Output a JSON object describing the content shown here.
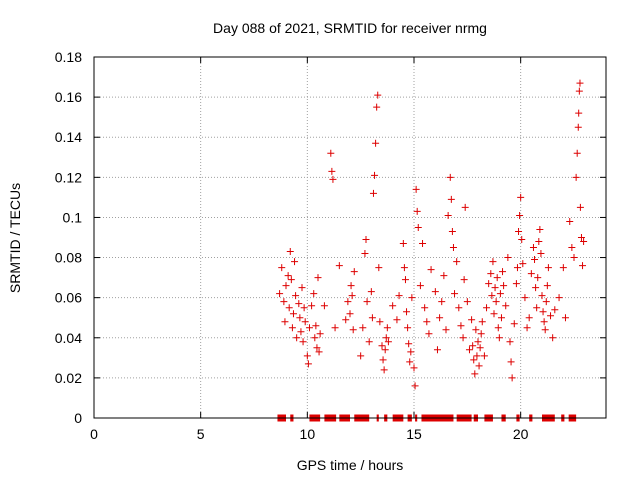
{
  "chart_data": {
    "type": "scatter",
    "title": "Day 088 of 2021, SRMTID for receiver nrmg",
    "xlabel": "GPS time / hours",
    "ylabel": "SRMTID / TECUs",
    "xlim": [
      0,
      24
    ],
    "ylim": [
      0,
      0.18
    ],
    "x_ticks": [
      0,
      5,
      10,
      15,
      20
    ],
    "x_tick_labels": [
      "0",
      "5",
      "10",
      "15",
      "20"
    ],
    "y_ticks": [
      0,
      0.02,
      0.04,
      0.06,
      0.08,
      0.1,
      0.12,
      0.14,
      0.16,
      0.18
    ],
    "y_tick_labels": [
      "0",
      "0.02",
      "0.04",
      "0.06",
      "0.08",
      "0.1",
      "0.12",
      "0.14",
      "0.16",
      "0.18"
    ],
    "grid": true,
    "marker": "+",
    "series": [
      {
        "name": "SRMTID",
        "color": "#dd0000",
        "points": [
          [
            8.7,
            0.062
          ],
          [
            8.8,
            0.075
          ],
          [
            8.9,
            0.058
          ],
          [
            8.95,
            0.048
          ],
          [
            9.0,
            0.066
          ],
          [
            9.1,
            0.071
          ],
          [
            9.15,
            0.055
          ],
          [
            9.2,
            0.083
          ],
          [
            9.25,
            0.069
          ],
          [
            9.3,
            0.045
          ],
          [
            9.35,
            0.052
          ],
          [
            9.4,
            0.078
          ],
          [
            9.45,
            0.061
          ],
          [
            9.5,
            0.04
          ],
          [
            9.6,
            0.057
          ],
          [
            9.65,
            0.05
          ],
          [
            9.7,
            0.043
          ],
          [
            9.75,
            0.065
          ],
          [
            9.8,
            0.038
          ],
          [
            9.85,
            0.055
          ],
          [
            9.9,
            0.048
          ],
          [
            10.0,
            0.031
          ],
          [
            10.05,
            0.027
          ],
          [
            10.1,
            0.045
          ],
          [
            10.2,
            0.056
          ],
          [
            10.3,
            0.062
          ],
          [
            10.35,
            0.04
          ],
          [
            10.4,
            0.046
          ],
          [
            10.45,
            0.035
          ],
          [
            10.5,
            0.07
          ],
          [
            10.55,
            0.033
          ],
          [
            10.6,
            0.042
          ],
          [
            10.8,
            0.056
          ],
          [
            11.1,
            0.132
          ],
          [
            11.15,
            0.123
          ],
          [
            11.2,
            0.119
          ],
          [
            11.3,
            0.045
          ],
          [
            11.5,
            0.076
          ],
          [
            11.8,
            0.049
          ],
          [
            11.9,
            0.058
          ],
          [
            12.0,
            0.052
          ],
          [
            12.05,
            0.066
          ],
          [
            12.1,
            0.061
          ],
          [
            12.15,
            0.044
          ],
          [
            12.2,
            0.073
          ],
          [
            12.5,
            0.031
          ],
          [
            12.6,
            0.045
          ],
          [
            12.7,
            0.082
          ],
          [
            12.75,
            0.089
          ],
          [
            12.8,
            0.058
          ],
          [
            12.9,
            0.038
          ],
          [
            13.0,
            0.063
          ],
          [
            13.05,
            0.05
          ],
          [
            13.1,
            0.112
          ],
          [
            13.15,
            0.121
          ],
          [
            13.2,
            0.137
          ],
          [
            13.25,
            0.155
          ],
          [
            13.3,
            0.161
          ],
          [
            13.35,
            0.075
          ],
          [
            13.4,
            0.048
          ],
          [
            13.5,
            0.036
          ],
          [
            13.55,
            0.029
          ],
          [
            13.6,
            0.024
          ],
          [
            13.65,
            0.034
          ],
          [
            13.7,
            0.04
          ],
          [
            13.75,
            0.045
          ],
          [
            13.8,
            0.038
          ],
          [
            14.0,
            0.056
          ],
          [
            14.2,
            0.049
          ],
          [
            14.3,
            0.061
          ],
          [
            14.5,
            0.087
          ],
          [
            14.55,
            0.075
          ],
          [
            14.6,
            0.069
          ],
          [
            14.65,
            0.053
          ],
          [
            14.7,
            0.045
          ],
          [
            14.75,
            0.037
          ],
          [
            14.8,
            0.028
          ],
          [
            14.85,
            0.033
          ],
          [
            14.9,
            0.06
          ],
          [
            15.0,
            0.025
          ],
          [
            15.05,
            0.016
          ],
          [
            15.1,
            0.114
          ],
          [
            15.15,
            0.103
          ],
          [
            15.2,
            0.095
          ],
          [
            15.3,
            0.066
          ],
          [
            15.4,
            0.087
          ],
          [
            15.5,
            0.055
          ],
          [
            15.6,
            0.048
          ],
          [
            15.7,
            0.042
          ],
          [
            15.8,
            0.074
          ],
          [
            16.0,
            0.063
          ],
          [
            16.1,
            0.034
          ],
          [
            16.2,
            0.05
          ],
          [
            16.3,
            0.058
          ],
          [
            16.4,
            0.071
          ],
          [
            16.5,
            0.044
          ],
          [
            16.6,
            0.101
          ],
          [
            16.7,
            0.12
          ],
          [
            16.75,
            0.109
          ],
          [
            16.8,
            0.093
          ],
          [
            16.85,
            0.085
          ],
          [
            16.9,
            0.062
          ],
          [
            17.0,
            0.078
          ],
          [
            17.1,
            0.055
          ],
          [
            17.2,
            0.046
          ],
          [
            17.3,
            0.04
          ],
          [
            17.35,
            0.069
          ],
          [
            17.4,
            0.105
          ],
          [
            17.5,
            0.058
          ],
          [
            17.6,
            0.034
          ],
          [
            17.7,
            0.049
          ],
          [
            17.75,
            0.036
          ],
          [
            17.8,
            0.029
          ],
          [
            17.85,
            0.022
          ],
          [
            17.9,
            0.044
          ],
          [
            17.95,
            0.031
          ],
          [
            18.0,
            0.038
          ],
          [
            18.05,
            0.026
          ],
          [
            18.1,
            0.035
          ],
          [
            18.15,
            0.042
          ],
          [
            18.2,
            0.048
          ],
          [
            18.3,
            0.031
          ],
          [
            18.4,
            0.055
          ],
          [
            18.5,
            0.067
          ],
          [
            18.6,
            0.072
          ],
          [
            18.65,
            0.061
          ],
          [
            18.7,
            0.078
          ],
          [
            18.75,
            0.052
          ],
          [
            18.8,
            0.065
          ],
          [
            18.85,
            0.058
          ],
          [
            18.9,
            0.07
          ],
          [
            18.95,
            0.045
          ],
          [
            19.0,
            0.04
          ],
          [
            19.05,
            0.062
          ],
          [
            19.1,
            0.05
          ],
          [
            19.15,
            0.073
          ],
          [
            19.2,
            0.066
          ],
          [
            19.3,
            0.056
          ],
          [
            19.4,
            0.08
          ],
          [
            19.5,
            0.038
          ],
          [
            19.55,
            0.028
          ],
          [
            19.6,
            0.02
          ],
          [
            19.7,
            0.047
          ],
          [
            19.8,
            0.067
          ],
          [
            19.85,
            0.075
          ],
          [
            19.9,
            0.093
          ],
          [
            19.95,
            0.101
          ],
          [
            20.0,
            0.11
          ],
          [
            20.05,
            0.089
          ],
          [
            20.1,
            0.077
          ],
          [
            20.2,
            0.06
          ],
          [
            20.3,
            0.045
          ],
          [
            20.4,
            0.05
          ],
          [
            20.5,
            0.072
          ],
          [
            20.6,
            0.085
          ],
          [
            20.65,
            0.079
          ],
          [
            20.7,
            0.065
          ],
          [
            20.75,
            0.055
          ],
          [
            20.8,
            0.07
          ],
          [
            20.85,
            0.088
          ],
          [
            20.9,
            0.094
          ],
          [
            20.95,
            0.082
          ],
          [
            21.0,
            0.061
          ],
          [
            21.05,
            0.053
          ],
          [
            21.1,
            0.048
          ],
          [
            21.15,
            0.044
          ],
          [
            21.2,
            0.058
          ],
          [
            21.25,
            0.066
          ],
          [
            21.3,
            0.075
          ],
          [
            21.4,
            0.051
          ],
          [
            21.5,
            0.04
          ],
          [
            21.6,
            0.054
          ],
          [
            21.8,
            0.06
          ],
          [
            22.0,
            0.075
          ],
          [
            22.1,
            0.05
          ],
          [
            22.3,
            0.098
          ],
          [
            22.4,
            0.085
          ],
          [
            22.5,
            0.08
          ],
          [
            22.6,
            0.12
          ],
          [
            22.65,
            0.132
          ],
          [
            22.7,
            0.145
          ],
          [
            22.72,
            0.152
          ],
          [
            22.75,
            0.163
          ],
          [
            22.78,
            0.167
          ],
          [
            22.8,
            0.105
          ],
          [
            22.85,
            0.09
          ],
          [
            22.9,
            0.076
          ],
          [
            22.95,
            0.088
          ]
        ],
        "zero_segments": [
          [
            8.6,
            9.0
          ],
          [
            9.2,
            9.35
          ],
          [
            10.1,
            10.6
          ],
          [
            10.8,
            11.35
          ],
          [
            11.5,
            12.0
          ],
          [
            12.2,
            12.9
          ],
          [
            13.25,
            13.35
          ],
          [
            13.6,
            13.75
          ],
          [
            14.0,
            14.5
          ],
          [
            14.7,
            14.9
          ],
          [
            15.05,
            15.15
          ],
          [
            15.35,
            16.85
          ],
          [
            17.0,
            17.7
          ],
          [
            17.8,
            18.0
          ],
          [
            18.3,
            18.7
          ],
          [
            19.1,
            19.3
          ],
          [
            19.8,
            19.95
          ],
          [
            20.4,
            20.55
          ],
          [
            21.0,
            21.6
          ],
          [
            21.9,
            22.05
          ],
          [
            22.25,
            22.6
          ]
        ]
      }
    ]
  }
}
